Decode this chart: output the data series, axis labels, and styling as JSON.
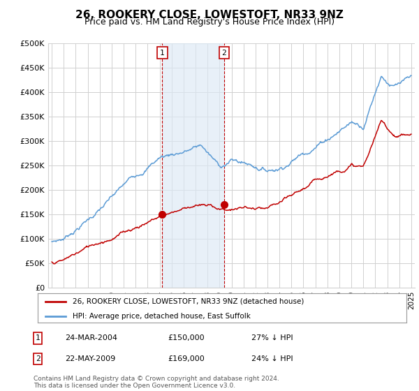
{
  "title": "26, ROOKERY CLOSE, LOWESTOFT, NR33 9NZ",
  "subtitle": "Price paid vs. HM Land Registry's House Price Index (HPI)",
  "ylabel_ticks": [
    "£0",
    "£50K",
    "£100K",
    "£150K",
    "£200K",
    "£250K",
    "£300K",
    "£350K",
    "£400K",
    "£450K",
    "£500K"
  ],
  "ytick_values": [
    0,
    50000,
    100000,
    150000,
    200000,
    250000,
    300000,
    350000,
    400000,
    450000,
    500000
  ],
  "ylim": [
    0,
    500000
  ],
  "xlim_start": 1994.7,
  "xlim_end": 2025.3,
  "hpi_color": "#5b9bd5",
  "price_color": "#c00000",
  "shaded_color": "#dce9f5",
  "shaded_alpha": 0.65,
  "marker1_x": 2004.22,
  "marker1_y": 150000,
  "marker2_x": 2009.38,
  "marker2_y": 169000,
  "legend_line1": "26, ROOKERY CLOSE, LOWESTOFT, NR33 9NZ (detached house)",
  "legend_line2": "HPI: Average price, detached house, East Suffolk",
  "table_row1": [
    "1",
    "24-MAR-2004",
    "£150,000",
    "27% ↓ HPI"
  ],
  "table_row2": [
    "2",
    "22-MAY-2009",
    "£169,000",
    "24% ↓ HPI"
  ],
  "footnote": "Contains HM Land Registry data © Crown copyright and database right 2024.\nThis data is licensed under the Open Government Licence v3.0.",
  "background_color": "#ffffff",
  "grid_color": "#d0d0d0",
  "title_fontsize": 11,
  "subtitle_fontsize": 9,
  "tick_fontsize": 8,
  "xticks": [
    1995,
    1996,
    1997,
    1998,
    1999,
    2000,
    2001,
    2002,
    2003,
    2004,
    2005,
    2006,
    2007,
    2008,
    2009,
    2010,
    2011,
    2012,
    2013,
    2014,
    2015,
    2016,
    2017,
    2018,
    2019,
    2020,
    2021,
    2022,
    2023,
    2024,
    2025
  ]
}
